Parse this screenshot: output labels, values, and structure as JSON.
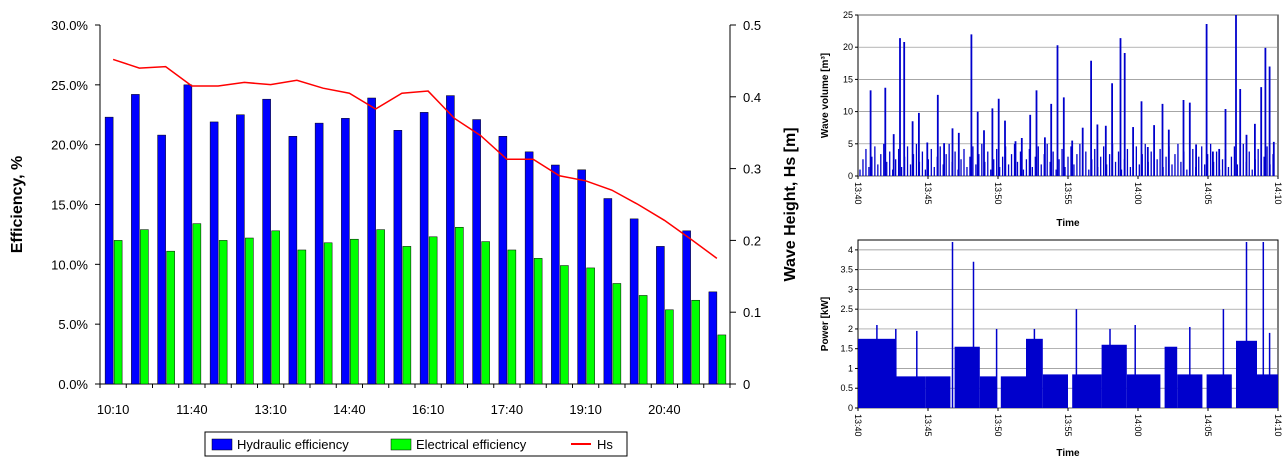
{
  "chart_data": [
    {
      "type": "bar",
      "xlabel": "",
      "ylabel": "Efficiency, %",
      "y2label": "Wave Height, Hs [m]",
      "ylim": [
        0,
        30
      ],
      "y2lim": [
        0,
        0.5
      ],
      "yticks": [
        "0.0%",
        "5.0%",
        "10.0%",
        "15.0%",
        "20.0%",
        "25.0%",
        "30.0%"
      ],
      "y2ticks": [
        "0",
        "0.1",
        "0.2",
        "0.3",
        "0.4",
        "0.5"
      ],
      "xticks": [
        "10:10",
        "11:40",
        "13:10",
        "14:40",
        "16:10",
        "17:40",
        "19:10",
        "20:40"
      ],
      "legend_position": "bottom",
      "series": [
        {
          "name": "Hydraulic efficiency",
          "kind": "bar",
          "color": "#0000ff",
          "values": [
            22.3,
            24.2,
            20.8,
            25.0,
            21.9,
            22.5,
            23.8,
            20.7,
            21.8,
            22.2,
            23.9,
            21.2,
            22.7,
            24.1,
            22.1,
            20.7,
            19.4,
            18.3,
            17.9,
            15.5,
            13.8,
            11.5,
            12.8,
            7.7
          ]
        },
        {
          "name": "Electrical efficiency",
          "kind": "bar",
          "color": "#00ff00",
          "values": [
            12.0,
            12.9,
            11.1,
            13.4,
            12.0,
            12.2,
            12.8,
            11.2,
            11.8,
            12.1,
            12.9,
            11.5,
            12.3,
            13.1,
            11.9,
            11.2,
            10.5,
            9.9,
            9.7,
            8.4,
            7.4,
            6.2,
            7.0,
            4.1
          ]
        },
        {
          "name": "Hs",
          "kind": "line",
          "axis": "y2",
          "color": "#ff0000",
          "values": [
            0.452,
            0.44,
            0.442,
            0.415,
            0.415,
            0.42,
            0.417,
            0.423,
            0.412,
            0.405,
            0.383,
            0.405,
            0.408,
            0.37,
            0.346,
            0.313,
            0.313,
            0.29,
            0.283,
            0.27,
            0.25,
            0.228,
            0.202,
            0.175
          ]
        }
      ]
    },
    {
      "type": "bar",
      "xlabel": "Time",
      "ylabel": "Wave volume [m³]",
      "ylim": [
        0,
        25
      ],
      "yticks": [
        "0",
        "5",
        "10",
        "15",
        "20",
        "25"
      ],
      "xticks": [
        "13:40",
        "13:45",
        "13:50",
        "13:55",
        "14:00",
        "14:05",
        "14:10"
      ],
      "grid": true,
      "color": "#0000cc",
      "spikes": [
        {
          "x": 0.03,
          "v": 13.3
        },
        {
          "x": 0.065,
          "v": 13.7
        },
        {
          "x": 0.085,
          "v": 6.5
        },
        {
          "x": 0.1,
          "v": 21.4
        },
        {
          "x": 0.11,
          "v": 20.8
        },
        {
          "x": 0.13,
          "v": 8.5
        },
        {
          "x": 0.145,
          "v": 9.8
        },
        {
          "x": 0.165,
          "v": 5.2
        },
        {
          "x": 0.19,
          "v": 12.6
        },
        {
          "x": 0.205,
          "v": 5.1
        },
        {
          "x": 0.225,
          "v": 7.4
        },
        {
          "x": 0.24,
          "v": 6.7
        },
        {
          "x": 0.27,
          "v": 22.0
        },
        {
          "x": 0.285,
          "v": 10.0
        },
        {
          "x": 0.3,
          "v": 7.1
        },
        {
          "x": 0.32,
          "v": 10.5
        },
        {
          "x": 0.335,
          "v": 12.0
        },
        {
          "x": 0.35,
          "v": 8.6
        },
        {
          "x": 0.375,
          "v": 5.4
        },
        {
          "x": 0.39,
          "v": 5.9
        },
        {
          "x": 0.41,
          "v": 9.5
        },
        {
          "x": 0.425,
          "v": 13.3
        },
        {
          "x": 0.445,
          "v": 6.0
        },
        {
          "x": 0.46,
          "v": 11.2
        },
        {
          "x": 0.475,
          "v": 20.3
        },
        {
          "x": 0.49,
          "v": 12.2
        },
        {
          "x": 0.51,
          "v": 5.5
        },
        {
          "x": 0.535,
          "v": 7.5
        },
        {
          "x": 0.555,
          "v": 17.9
        },
        {
          "x": 0.57,
          "v": 8.0
        },
        {
          "x": 0.59,
          "v": 7.8
        },
        {
          "x": 0.605,
          "v": 14.4
        },
        {
          "x": 0.625,
          "v": 21.4
        },
        {
          "x": 0.635,
          "v": 19.1
        },
        {
          "x": 0.655,
          "v": 7.6
        },
        {
          "x": 0.675,
          "v": 11.6
        },
        {
          "x": 0.69,
          "v": 4.5
        },
        {
          "x": 0.705,
          "v": 7.9
        },
        {
          "x": 0.725,
          "v": 11.2
        },
        {
          "x": 0.74,
          "v": 7.2
        },
        {
          "x": 0.775,
          "v": 11.8
        },
        {
          "x": 0.79,
          "v": 11.4
        },
        {
          "x": 0.805,
          "v": 4.9
        },
        {
          "x": 0.83,
          "v": 23.6
        },
        {
          "x": 0.845,
          "v": 3.8
        },
        {
          "x": 0.86,
          "v": 4.2
        },
        {
          "x": 0.875,
          "v": 10.4
        },
        {
          "x": 0.9,
          "v": 25.0
        },
        {
          "x": 0.91,
          "v": 13.5
        },
        {
          "x": 0.925,
          "v": 6.4
        },
        {
          "x": 0.945,
          "v": 8.1
        },
        {
          "x": 0.96,
          "v": 13.8
        },
        {
          "x": 0.97,
          "v": 19.9
        },
        {
          "x": 0.98,
          "v": 17.0
        },
        {
          "x": 0.99,
          "v": 5.3
        }
      ]
    },
    {
      "type": "area",
      "xlabel": "Time",
      "ylabel": "Power [kW]",
      "ylim": [
        0,
        4.25
      ],
      "yticks": [
        "0",
        "0.5",
        "1",
        "1.5",
        "2",
        "2.5",
        "3",
        "3.5",
        "4"
      ],
      "xticks": [
        "13:40",
        "13:45",
        "13:50",
        "13:55",
        "14:00",
        "14:05",
        "14:10"
      ],
      "grid": true,
      "color": "#0000cc",
      "segments": [
        {
          "start": 0.0,
          "end": 0.09,
          "level": 1.75
        },
        {
          "start": 0.09,
          "end": 0.16,
          "level": 0.8
        },
        {
          "start": 0.16,
          "end": 0.22,
          "level": 0.8
        },
        {
          "start": 0.23,
          "end": 0.29,
          "level": 1.55
        },
        {
          "start": 0.29,
          "end": 0.33,
          "level": 0.8
        },
        {
          "start": 0.34,
          "end": 0.4,
          "level": 0.8
        },
        {
          "start": 0.4,
          "end": 0.44,
          "level": 1.75
        },
        {
          "start": 0.44,
          "end": 0.5,
          "level": 0.85
        },
        {
          "start": 0.51,
          "end": 0.58,
          "level": 0.85
        },
        {
          "start": 0.58,
          "end": 0.64,
          "level": 1.6
        },
        {
          "start": 0.64,
          "end": 0.72,
          "level": 0.85
        },
        {
          "start": 0.73,
          "end": 0.76,
          "level": 1.55
        },
        {
          "start": 0.76,
          "end": 0.82,
          "level": 0.85
        },
        {
          "start": 0.83,
          "end": 0.89,
          "level": 0.85
        },
        {
          "start": 0.9,
          "end": 0.95,
          "level": 1.7
        },
        {
          "start": 0.95,
          "end": 1.0,
          "level": 0.85
        }
      ],
      "spikes": [
        {
          "x": 0.045,
          "v": 2.1
        },
        {
          "x": 0.09,
          "v": 2.0
        },
        {
          "x": 0.14,
          "v": 1.95
        },
        {
          "x": 0.225,
          "v": 4.2
        },
        {
          "x": 0.275,
          "v": 3.7
        },
        {
          "x": 0.33,
          "v": 2.0
        },
        {
          "x": 0.42,
          "v": 2.0
        },
        {
          "x": 0.52,
          "v": 2.5
        },
        {
          "x": 0.6,
          "v": 2.0
        },
        {
          "x": 0.66,
          "v": 2.1
        },
        {
          "x": 0.79,
          "v": 2.05
        },
        {
          "x": 0.87,
          "v": 2.5
        },
        {
          "x": 0.925,
          "v": 4.2
        },
        {
          "x": 0.965,
          "v": 4.2
        },
        {
          "x": 0.98,
          "v": 1.9
        }
      ]
    }
  ]
}
